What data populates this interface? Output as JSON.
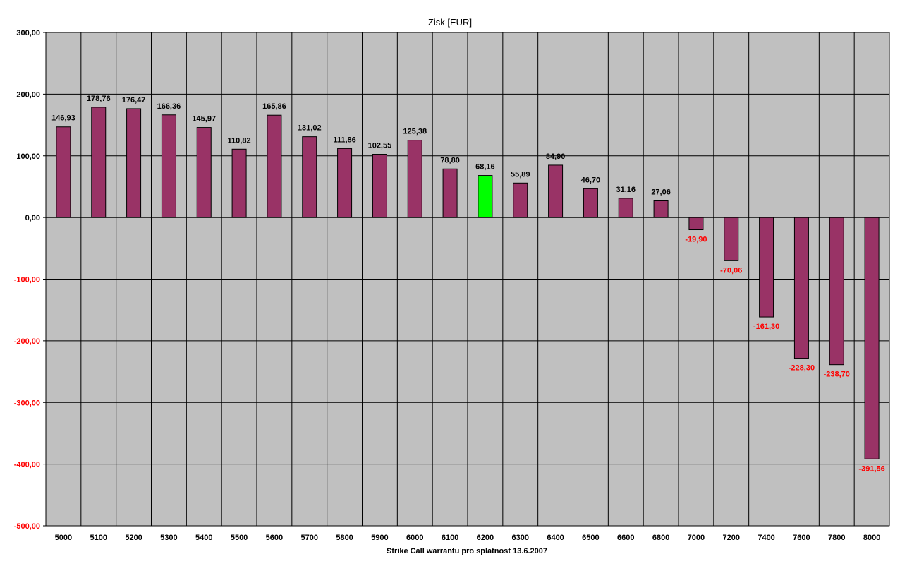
{
  "chart_data": {
    "type": "bar",
    "title": "Zisk [EUR]",
    "xlabel": "Strike Call warrantu pro splatnost 13.6.2007",
    "ylabel": "",
    "ylim": [
      -500,
      300
    ],
    "yticks": [
      300,
      200,
      100,
      0,
      -100,
      -200,
      -300,
      -400,
      -500
    ],
    "ytick_labels": [
      "300,00",
      "200,00",
      "100,00",
      "0,00",
      "-100,00",
      "-200,00",
      "-300,00",
      "-400,00",
      "-500,00"
    ],
    "categories": [
      "5000",
      "5100",
      "5200",
      "5300",
      "5400",
      "5500",
      "5600",
      "5700",
      "5800",
      "5900",
      "6000",
      "6100",
      "6200",
      "6300",
      "6400",
      "6500",
      "6600",
      "6800",
      "7000",
      "7200",
      "7400",
      "7600",
      "7800",
      "8000"
    ],
    "values": [
      146.93,
      178.76,
      176.47,
      166.36,
      145.97,
      110.82,
      165.86,
      131.02,
      111.86,
      102.55,
      125.38,
      78.8,
      68.16,
      55.89,
      84.9,
      46.7,
      31.16,
      27.06,
      -19.9,
      -70.06,
      -161.3,
      -228.3,
      -238.7,
      -391.56
    ],
    "value_labels": [
      "146,93",
      "178,76",
      "176,47",
      "166,36",
      "145,97",
      "110,82",
      "165,86",
      "131,02",
      "111,86",
      "102,55",
      "125,38",
      "78,80",
      "68,16",
      "55,89",
      "84,90",
      "46,70",
      "31,16",
      "27,06",
      "-19,90",
      "-70,06",
      "-161,30",
      "-228,30",
      "-238,70",
      "-391,56"
    ],
    "highlight_index": 12,
    "grid": true,
    "colors": {
      "bar": "#993366",
      "highlight_bar": "#00ff00",
      "plot_background": "#c0c0c0",
      "negative_text": "#ff0000",
      "positive_text": "#000000",
      "grid": "#000000"
    }
  }
}
